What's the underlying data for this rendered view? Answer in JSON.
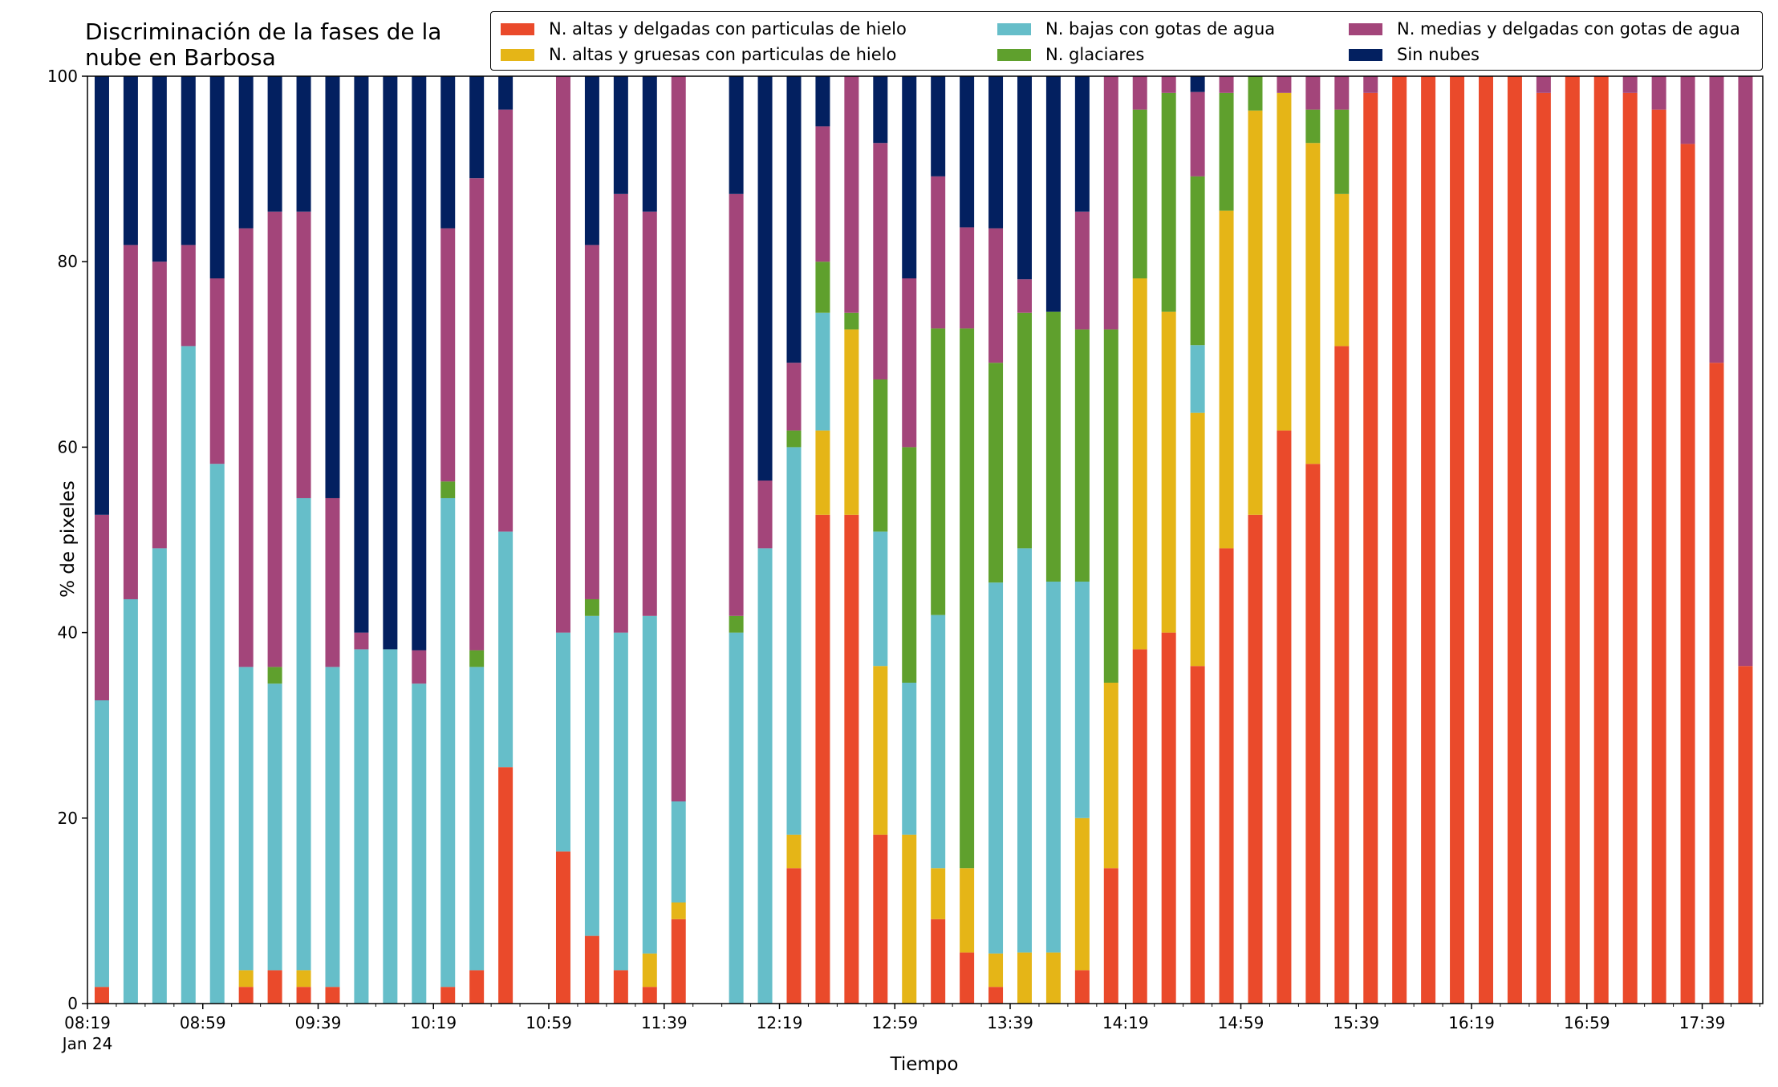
{
  "chart_data": {
    "type": "bar",
    "stacked": true,
    "title": "Discriminación de la fases de la nube en Barbosa",
    "title_lines": [
      "Discriminación de la fases de la",
      "nube en Barbosa"
    ],
    "xlabel": "Tiempo",
    "ylabel": "% de pixeles",
    "ylim": [
      0,
      100
    ],
    "yticks": [
      0,
      20,
      40,
      60,
      80,
      100
    ],
    "x_range_minutes": [
      "08:19",
      "18:00"
    ],
    "x_tick_labels": [
      {
        "time": "08:19",
        "label": "08:19",
        "sublabel": "Jan 24"
      },
      {
        "time": "08:59",
        "label": "08:59"
      },
      {
        "time": "09:39",
        "label": "09:39"
      },
      {
        "time": "10:19",
        "label": "10:19"
      },
      {
        "time": "10:59",
        "label": "10:59"
      },
      {
        "time": "11:39",
        "label": "11:39"
      },
      {
        "time": "12:19",
        "label": "12:19"
      },
      {
        "time": "12:59",
        "label": "12:59"
      },
      {
        "time": "13:39",
        "label": "13:39"
      },
      {
        "time": "14:19",
        "label": "14:19"
      },
      {
        "time": "14:59",
        "label": "14:59"
      },
      {
        "time": "15:39",
        "label": "15:39"
      },
      {
        "time": "16:19",
        "label": "16:19"
      },
      {
        "time": "16:59",
        "label": "16:59"
      },
      {
        "time": "17:39",
        "label": "17:39"
      }
    ],
    "grid": false,
    "legend_placement": "top-right",
    "series": [
      {
        "name": "N. altas y delgadas con particulas de hielo",
        "color": "#ea4a2b"
      },
      {
        "name": "N. altas y gruesas con particulas de hielo",
        "color": "#e5b517"
      },
      {
        "name": "N. bajas con gotas de agua",
        "color": "#66bec9"
      },
      {
        "name": "N. glaciares",
        "color": "#5fa02d"
      },
      {
        "name": "N. medias y delgadas con gotas de agua",
        "color": "#a3457a"
      },
      {
        "name": "Sin nubes",
        "color": "#032060"
      }
    ],
    "times": [
      "08:24",
      "08:34",
      "08:44",
      "08:54",
      "09:04",
      "09:14",
      "09:24",
      "09:34",
      "09:44",
      "09:54",
      "10:04",
      "10:14",
      "10:24",
      "10:34",
      "10:44",
      "11:04",
      "11:14",
      "11:24",
      "11:34",
      "11:44",
      "12:04",
      "12:14",
      "12:24",
      "12:34",
      "12:44",
      "12:54",
      "13:04",
      "13:14",
      "13:24",
      "13:34",
      "13:44",
      "13:54",
      "14:04",
      "14:14",
      "14:24",
      "14:34",
      "14:44",
      "14:54",
      "15:04",
      "15:14",
      "15:24",
      "15:34",
      "15:44",
      "15:54",
      "16:04",
      "16:14",
      "16:24",
      "16:34",
      "16:44",
      "16:54",
      "17:04",
      "17:14",
      "17:24",
      "17:34",
      "17:44",
      "17:54"
    ],
    "stacks": [
      [
        1.8,
        0,
        30.9,
        0,
        20,
        47.3
      ],
      [
        0,
        0,
        43.6,
        0,
        38.2,
        18.2
      ],
      [
        0,
        0,
        49.1,
        0,
        30.9,
        20
      ],
      [
        0,
        0,
        70.9,
        0,
        10.9,
        18.2
      ],
      [
        0,
        0,
        58.2,
        0,
        20,
        21.8
      ],
      [
        1.8,
        1.8,
        32.7,
        0,
        47.3,
        16.4
      ],
      [
        3.6,
        0,
        30.9,
        1.8,
        49.1,
        14.6
      ],
      [
        1.8,
        1.8,
        50.9,
        0,
        30.9,
        14.6
      ],
      [
        1.8,
        0,
        34.5,
        0,
        18.2,
        45.5
      ],
      [
        0,
        0,
        38.2,
        0,
        1.8,
        60
      ],
      [
        0,
        0,
        38.2,
        0,
        0,
        61.8
      ],
      [
        0,
        0,
        34.5,
        0,
        3.6,
        61.9
      ],
      [
        1.8,
        0,
        52.7,
        1.8,
        27.3,
        16.4
      ],
      [
        3.6,
        0,
        32.7,
        1.8,
        50.9,
        11
      ],
      [
        25.5,
        0,
        25.4,
        0,
        45.5,
        3.6
      ],
      [
        16.4,
        0,
        23.6,
        0,
        60,
        0
      ],
      [
        7.3,
        0,
        34.5,
        1.8,
        38.2,
        18.2
      ],
      [
        3.6,
        0,
        36.4,
        0,
        47.3,
        12.7
      ],
      [
        1.8,
        3.6,
        36.4,
        0,
        43.6,
        14.6
      ],
      [
        9.1,
        1.8,
        10.9,
        0,
        78.2,
        0
      ],
      [
        0,
        0,
        40,
        1.8,
        45.5,
        12.7
      ],
      [
        0,
        0,
        49.1,
        0,
        7.3,
        43.6
      ],
      [
        14.6,
        3.6,
        41.8,
        1.8,
        7.3,
        30.9
      ],
      [
        52.7,
        9.1,
        12.7,
        5.5,
        14.6,
        5.4
      ],
      [
        52.7,
        20,
        0,
        1.8,
        25.5,
        0
      ],
      [
        18.2,
        18.2,
        14.5,
        16.4,
        25.5,
        7.2
      ],
      [
        0,
        18.2,
        16.4,
        25.4,
        18.2,
        21.8
      ],
      [
        9.1,
        5.5,
        27.3,
        30.9,
        16.4,
        10.8
      ],
      [
        5.5,
        9.1,
        0,
        58.2,
        10.9,
        16.3
      ],
      [
        1.8,
        3.6,
        40,
        23.7,
        14.5,
        16.4
      ],
      [
        0,
        5.5,
        43.6,
        25.4,
        3.6,
        21.9
      ],
      [
        0,
        5.5,
        40,
        29.1,
        0,
        25.4
      ],
      [
        3.6,
        16.4,
        25.5,
        27.2,
        12.7,
        14.6
      ],
      [
        14.6,
        20,
        0,
        38.1,
        27.3,
        0
      ],
      [
        38.2,
        40,
        0,
        18.2,
        3.6,
        0
      ],
      [
        40,
        34.6,
        0,
        23.6,
        1.8,
        0
      ],
      [
        36.4,
        27.3,
        7.3,
        18.2,
        9.1,
        1.7
      ],
      [
        49.1,
        36.4,
        0,
        12.7,
        1.8,
        0
      ],
      [
        52.7,
        43.6,
        0,
        3.7,
        0,
        0
      ],
      [
        61.8,
        36.4,
        0,
        0,
        1.8,
        0
      ],
      [
        58.2,
        34.6,
        0,
        3.6,
        3.6,
        0
      ],
      [
        70.9,
        16.4,
        0,
        9.1,
        3.6,
        0
      ],
      [
        98.2,
        0,
        0,
        0,
        1.8,
        0
      ],
      [
        100,
        0,
        0,
        0,
        0,
        0
      ],
      [
        100,
        0,
        0,
        0,
        0,
        0
      ],
      [
        100,
        0,
        0,
        0,
        0,
        0
      ],
      [
        100,
        0,
        0,
        0,
        0,
        0
      ],
      [
        100,
        0,
        0,
        0,
        0,
        0
      ],
      [
        98.2,
        0,
        0,
        0,
        1.8,
        0
      ],
      [
        100,
        0,
        0,
        0,
        0,
        0
      ],
      [
        100,
        0,
        0,
        0,
        0,
        0
      ],
      [
        98.2,
        0,
        0,
        0,
        1.8,
        0
      ],
      [
        96.4,
        0,
        0,
        0,
        3.6,
        0
      ],
      [
        92.7,
        0,
        0,
        0,
        7.3,
        0
      ],
      [
        69.1,
        0,
        0,
        0,
        30.9,
        0
      ],
      [
        36.4,
        0,
        0,
        0,
        63.6,
        0
      ]
    ]
  }
}
